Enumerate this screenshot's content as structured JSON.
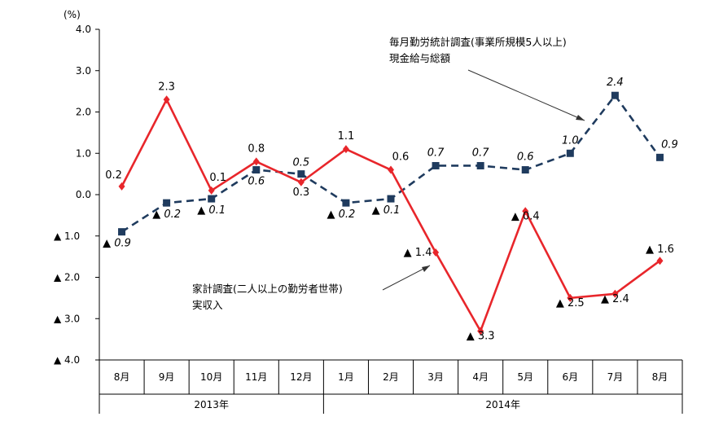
{
  "chart_data": {
    "type": "line",
    "y_unit": "(%)",
    "ylim": [
      -4.0,
      4.0
    ],
    "y_ticks": [
      "4.0",
      "3.0",
      "2.0",
      "1.0",
      "0.0",
      "▲ 1.0",
      "▲ 2.0",
      "▲ 3.0",
      "▲ 4.0"
    ],
    "categories": [
      "8月",
      "9月",
      "10月",
      "11月",
      "12月",
      "1月",
      "2月",
      "3月",
      "4月",
      "5月",
      "6月",
      "7月",
      "8月"
    ],
    "year_groups": [
      {
        "label": "2013年",
        "start": 0,
        "end": 4
      },
      {
        "label": "2014年",
        "start": 5,
        "end": 12
      }
    ],
    "series": [
      {
        "name": "家計調査(二人以上の勤労者世帯)実収入",
        "color": "#e8262b",
        "style": "solid",
        "marker": "diamond",
        "values": [
          0.2,
          2.3,
          0.1,
          0.8,
          0.3,
          1.1,
          0.6,
          -1.4,
          -3.3,
          -0.4,
          -2.5,
          -2.4,
          -1.6
        ],
        "labels": [
          "0.2",
          "2.3",
          "0.1",
          "0.8",
          "0.3",
          "1.1",
          "0.6",
          "▲ 1.4",
          "▲ 3.3",
          "▲ 0.4",
          "▲ 2.5",
          "▲ 2.4",
          "▲ 1.6"
        ]
      },
      {
        "name": "毎月勤労統計調査(事業所規模5人以上)現金給与総額",
        "color": "#1f3b5e",
        "style": "dashed",
        "marker": "square",
        "values": [
          -0.9,
          -0.2,
          -0.1,
          0.6,
          0.5,
          -0.2,
          -0.1,
          0.7,
          0.7,
          0.6,
          1.0,
          2.4,
          0.9
        ],
        "labels": [
          "▲ 0.9",
          "▲ 0.2",
          "▲ 0.1",
          "0.6",
          "0.5",
          "▲ 0.2",
          "▲ 0.1",
          "0.7",
          "0.7",
          "0.6",
          "1.0",
          "2.4",
          "0.9"
        ]
      }
    ],
    "annotations": [
      {
        "lines": [
          "毎月勤労統計調査(事業所規模5人以上)",
          "現金給与総額"
        ]
      },
      {
        "lines": [
          "家計調査(二人以上の勤労者世帯)",
          "実収入"
        ]
      }
    ],
    "grid": false
  }
}
